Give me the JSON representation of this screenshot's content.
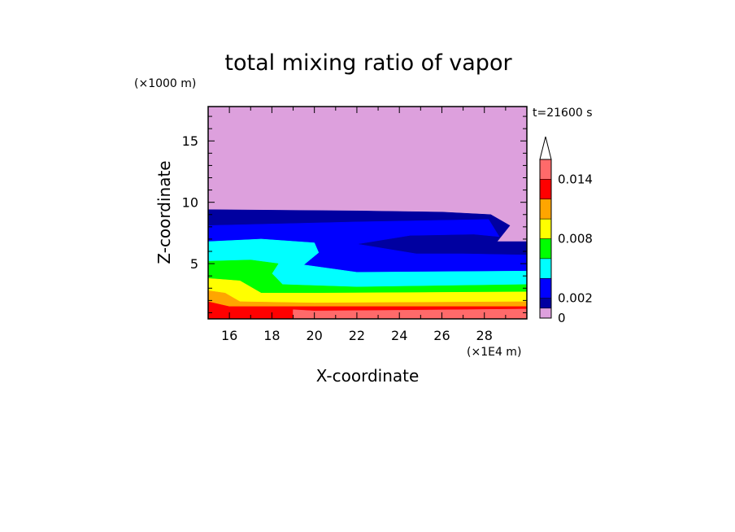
{
  "chart_data": {
    "type": "heatmap",
    "title": "total mixing ratio of vapor",
    "xlabel": "X-coordinate",
    "ylabel": "Z-coordinate",
    "x_unit": "(×1E4 m)",
    "y_unit": "(×1000 m)",
    "time_label": "t=21600 s",
    "xlim": [
      15,
      30
    ],
    "ylim": [
      0.5,
      17.8
    ],
    "x_ticks": [
      16,
      18,
      20,
      22,
      24,
      26,
      28
    ],
    "y_ticks": [
      5,
      10,
      15
    ],
    "colorbar": {
      "labels": [
        {
          "value": 0.014,
          "text": "0.014"
        },
        {
          "value": 0.008,
          "text": "0.008"
        },
        {
          "value": 0.002,
          "text": "0.002"
        },
        {
          "value": 0,
          "text": "0"
        }
      ],
      "levels": [
        0,
        0.001,
        0.002,
        0.004,
        0.006,
        0.008,
        0.01,
        0.012,
        0.014,
        0.016
      ],
      "colors": [
        "#dda0dd",
        "#0000a0",
        "#0000ff",
        "#00ffff",
        "#00ff00",
        "#ffff00",
        "#ffa500",
        "#ff0000",
        "#ff6a6a",
        "#ffc0c0"
      ],
      "extend": "max"
    },
    "layers": [
      {
        "level_index": 0,
        "color": "#dda0dd",
        "polygon": [
          [
            15,
            0.5
          ],
          [
            30,
            0.5
          ],
          [
            30,
            17.8
          ],
          [
            15,
            17.8
          ]
        ]
      },
      {
        "level_index": 1,
        "color": "#0000a0",
        "polygon": [
          [
            15,
            0.5
          ],
          [
            30,
            0.5
          ],
          [
            30,
            6.8
          ],
          [
            28.6,
            6.8
          ],
          [
            29.2,
            8.1
          ],
          [
            28.3,
            9.0
          ],
          [
            26,
            9.2
          ],
          [
            22,
            9.3
          ],
          [
            15,
            9.4
          ]
        ]
      },
      {
        "level_index": 2,
        "color": "#0000ff",
        "polygon": [
          [
            15,
            0.5
          ],
          [
            30,
            0.5
          ],
          [
            30,
            5.7
          ],
          [
            27,
            5.8
          ],
          [
            24.8,
            5.8
          ],
          [
            22,
            6.6
          ],
          [
            24.5,
            7.3
          ],
          [
            27.5,
            7.4
          ],
          [
            28.7,
            7.2
          ],
          [
            28.2,
            8.6
          ],
          [
            22,
            8.4
          ],
          [
            15,
            8.1
          ]
        ]
      },
      {
        "level_index": 3,
        "color": "#00ffff",
        "polygon": [
          [
            15,
            0.5
          ],
          [
            30,
            0.5
          ],
          [
            30,
            4.4
          ],
          [
            22,
            4.3
          ],
          [
            19.5,
            4.9
          ],
          [
            20.2,
            5.9
          ],
          [
            20.0,
            6.7
          ],
          [
            17.5,
            7.0
          ],
          [
            15,
            6.8
          ]
        ]
      },
      {
        "level_index": 4,
        "color": "#00ff00",
        "polygon": [
          [
            15,
            0.5
          ],
          [
            30,
            0.5
          ],
          [
            30,
            3.3
          ],
          [
            22,
            3.1
          ],
          [
            18.5,
            3.3
          ],
          [
            18.0,
            4.2
          ],
          [
            18.3,
            5.0
          ],
          [
            17.0,
            5.3
          ],
          [
            15,
            5.2
          ]
        ]
      },
      {
        "level_index": 5,
        "color": "#ffff00",
        "polygon": [
          [
            15,
            0.5
          ],
          [
            30,
            0.5
          ],
          [
            30,
            2.7
          ],
          [
            20,
            2.6
          ],
          [
            17.5,
            2.6
          ],
          [
            16.5,
            3.6
          ],
          [
            15,
            3.8
          ]
        ]
      },
      {
        "level_index": 6,
        "color": "#ffa500",
        "polygon": [
          [
            15,
            0.5
          ],
          [
            30,
            0.5
          ],
          [
            30,
            1.9
          ],
          [
            20,
            1.8
          ],
          [
            16.5,
            1.9
          ],
          [
            15.8,
            2.6
          ],
          [
            15,
            2.8
          ]
        ]
      },
      {
        "level_index": 7,
        "color": "#ff0000",
        "polygon": [
          [
            15,
            0.5
          ],
          [
            30,
            0.5
          ],
          [
            30,
            1.5
          ],
          [
            20,
            1.5
          ],
          [
            16,
            1.5
          ],
          [
            15,
            1.9
          ]
        ]
      },
      {
        "level_index": 8,
        "color": "#ff6a6a",
        "polygon": [
          [
            19.0,
            0.5
          ],
          [
            30,
            0.5
          ],
          [
            30,
            1.3
          ],
          [
            24,
            1.2
          ],
          [
            20,
            1.15
          ],
          [
            19.0,
            1.25
          ]
        ]
      }
    ]
  }
}
